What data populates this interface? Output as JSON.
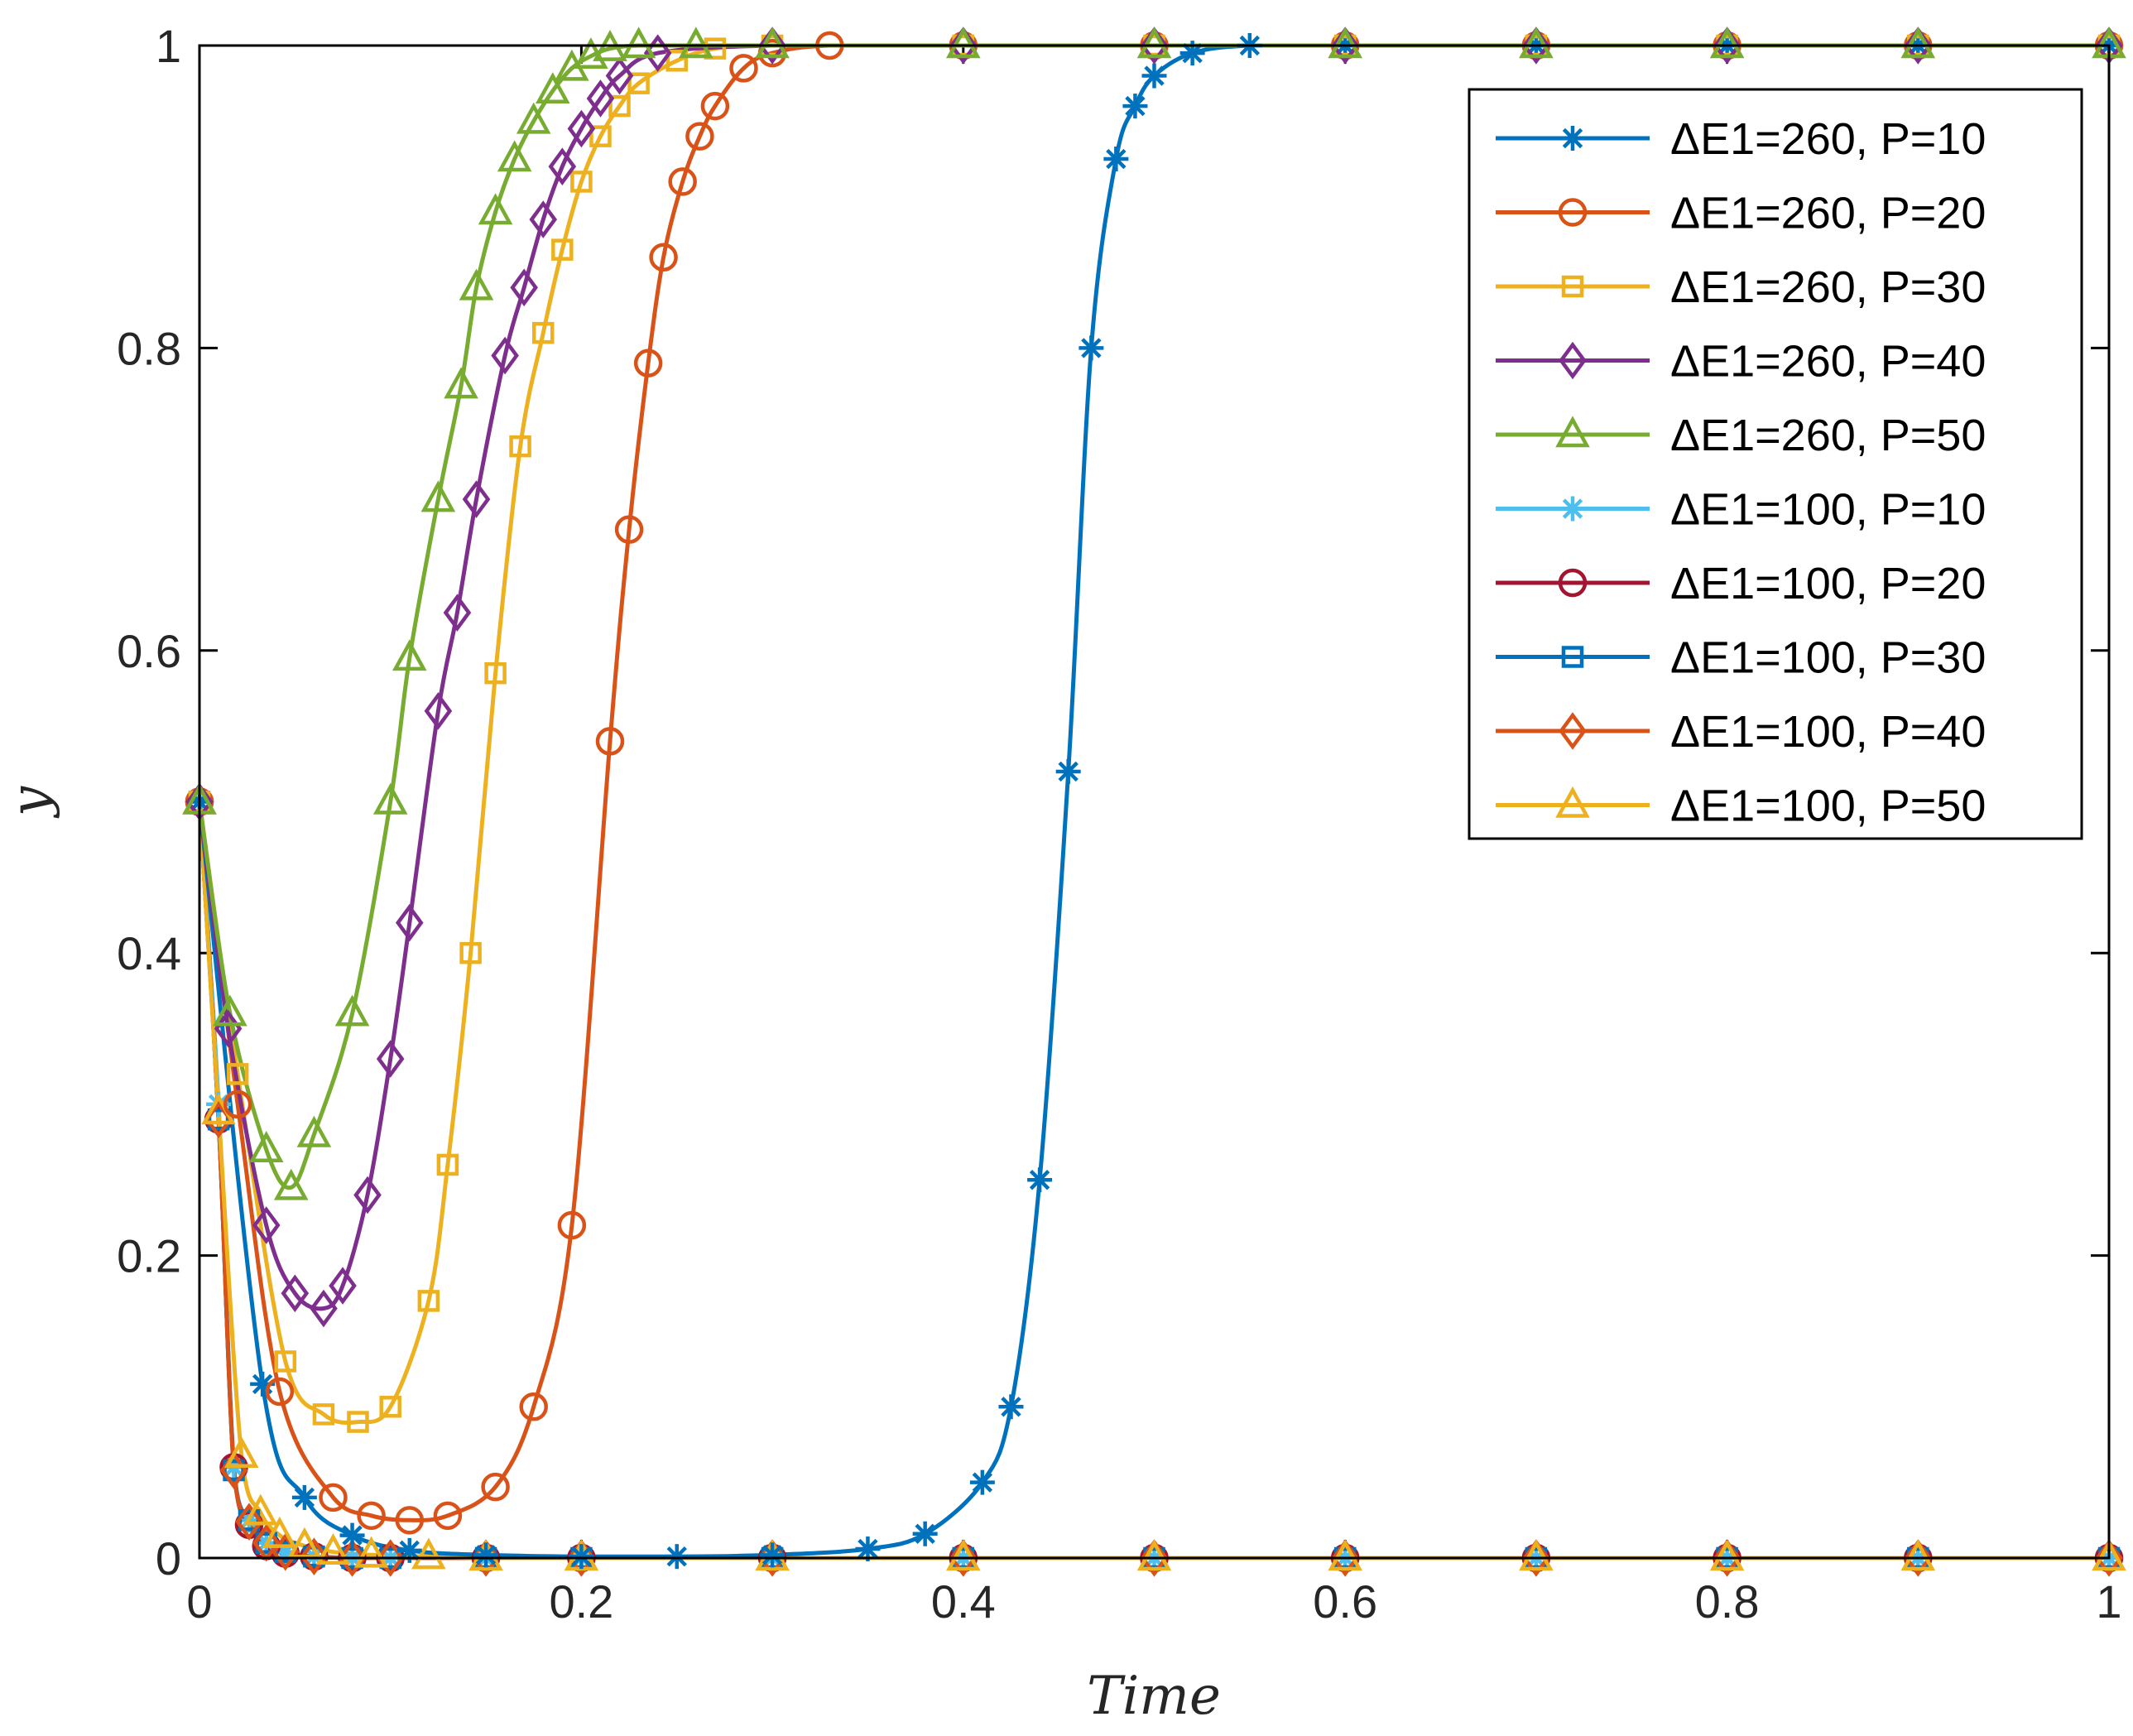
{
  "chart_data": {
    "type": "line",
    "title": "",
    "xlabel": "Time",
    "ylabel": "y",
    "xlim": [
      0,
      1
    ],
    "ylim": [
      0,
      1
    ],
    "xticks": [
      "0",
      "0.2",
      "0.4",
      "0.6",
      "0.8",
      "1"
    ],
    "yticks": [
      "0",
      "0.2",
      "0.4",
      "0.6",
      "0.8",
      "1"
    ],
    "grid": false,
    "legend_position": "top-right",
    "series": [
      {
        "name": "ΔE1=260, P=10",
        "color": "#0072BD",
        "marker": "asterisk",
        "x": [
          0,
          0.033,
          0.055,
          0.08,
          0.11,
          0.15,
          0.2,
          0.25,
          0.3,
          0.35,
          0.38,
          0.41,
          0.425,
          0.44,
          0.455,
          0.467,
          0.48,
          0.49,
          0.5,
          0.52,
          0.55,
          0.6,
          0.7,
          0.8,
          0.9,
          1.0
        ],
        "y": [
          0.5,
          0.115,
          0.04,
          0.015,
          0.005,
          0.002,
          0.001,
          0.001,
          0.002,
          0.006,
          0.016,
          0.05,
          0.1,
          0.25,
          0.52,
          0.8,
          0.925,
          0.96,
          0.98,
          0.995,
          1.0,
          1.0,
          1.0,
          1.0,
          1.0,
          1.0
        ]
      },
      {
        "name": "ΔE1=260, P=20",
        "color": "#D95319",
        "marker": "circle",
        "x": [
          0,
          0.02,
          0.042,
          0.07,
          0.09,
          0.11,
          0.13,
          0.155,
          0.175,
          0.195,
          0.215,
          0.225,
          0.235,
          0.243,
          0.253,
          0.262,
          0.27,
          0.285,
          0.3,
          0.33,
          0.4,
          0.5,
          0.6,
          0.7,
          0.8,
          0.9,
          1.0
        ],
        "y": [
          0.5,
          0.3,
          0.11,
          0.04,
          0.028,
          0.025,
          0.028,
          0.047,
          0.1,
          0.22,
          0.54,
          0.68,
          0.79,
          0.86,
          0.91,
          0.94,
          0.96,
          0.985,
          0.995,
          1.0,
          1.0,
          1.0,
          1.0,
          1.0,
          1.0,
          1.0,
          1.0
        ]
      },
      {
        "name": "ΔE1=260, P=30",
        "color": "#EDB120",
        "marker": "square",
        "x": [
          0,
          0.02,
          0.045,
          0.065,
          0.083,
          0.1,
          0.12,
          0.13,
          0.142,
          0.155,
          0.168,
          0.18,
          0.19,
          0.2,
          0.21,
          0.22,
          0.23,
          0.25,
          0.27,
          0.3,
          0.4,
          0.5,
          0.6,
          0.7,
          0.8,
          0.9,
          1.0
        ],
        "y": [
          0.5,
          0.32,
          0.13,
          0.095,
          0.09,
          0.1,
          0.17,
          0.26,
          0.4,
          0.585,
          0.735,
          0.81,
          0.865,
          0.91,
          0.94,
          0.96,
          0.975,
          0.99,
          0.998,
          1.0,
          1.0,
          1.0,
          1.0,
          1.0,
          1.0,
          1.0,
          1.0
        ]
      },
      {
        "name": "ΔE1=260, P=40",
        "color": "#7E2F8E",
        "marker": "diamond",
        "x": [
          0,
          0.015,
          0.035,
          0.05,
          0.065,
          0.075,
          0.088,
          0.1,
          0.11,
          0.125,
          0.135,
          0.145,
          0.16,
          0.17,
          0.18,
          0.19,
          0.2,
          0.21,
          0.22,
          0.24,
          0.3,
          0.4,
          0.5,
          0.6,
          0.7,
          0.8,
          0.9,
          1.0
        ],
        "y": [
          0.5,
          0.35,
          0.22,
          0.175,
          0.165,
          0.18,
          0.24,
          0.33,
          0.42,
          0.56,
          0.625,
          0.7,
          0.795,
          0.84,
          0.885,
          0.92,
          0.945,
          0.965,
          0.98,
          0.995,
          1.0,
          1.0,
          1.0,
          1.0,
          1.0,
          1.0,
          1.0,
          1.0
        ]
      },
      {
        "name": "ΔE1=260, P=50",
        "color": "#77AC30",
        "marker": "triangle",
        "x": [
          0,
          0.016,
          0.035,
          0.048,
          0.06,
          0.08,
          0.1,
          0.11,
          0.125,
          0.137,
          0.145,
          0.155,
          0.165,
          0.175,
          0.185,
          0.195,
          0.205,
          0.215,
          0.23,
          0.26,
          0.3,
          0.4,
          0.5,
          0.6,
          0.7,
          0.8,
          0.9,
          1.0
        ],
        "y": [
          0.5,
          0.36,
          0.27,
          0.245,
          0.28,
          0.36,
          0.5,
          0.595,
          0.7,
          0.775,
          0.84,
          0.89,
          0.925,
          0.95,
          0.97,
          0.985,
          0.993,
          0.998,
          1.0,
          1.0,
          1.0,
          1.0,
          1.0,
          1.0,
          1.0,
          1.0,
          1.0,
          1.0
        ]
      },
      {
        "name": "ΔE1=100, P=10",
        "color": "#4DBEEE",
        "marker": "asterisk",
        "x": [
          0,
          0.01,
          0.018,
          0.026,
          0.035,
          0.045,
          0.06,
          0.08,
          0.1,
          0.15,
          0.2,
          0.3,
          0.4,
          0.5,
          0.6,
          0.7,
          0.8,
          0.9,
          1.0
        ],
        "y": [
          0.5,
          0.3,
          0.06,
          0.025,
          0.01,
          0.004,
          0.001,
          0.0,
          0.0,
          0.0,
          0.0,
          0.0,
          0.0,
          0.0,
          0.0,
          0.0,
          0.0,
          0.0,
          0.0
        ]
      },
      {
        "name": "ΔE1=100, P=20",
        "color": "#A2142F",
        "marker": "circle",
        "x": [
          0,
          0.01,
          0.018,
          0.026,
          0.035,
          0.045,
          0.06,
          0.08,
          0.1,
          0.15,
          0.2,
          0.3,
          0.4,
          0.5,
          0.6,
          0.7,
          0.8,
          0.9,
          1.0
        ],
        "y": [
          0.5,
          0.29,
          0.06,
          0.022,
          0.008,
          0.003,
          0.001,
          0.0,
          0.0,
          0.0,
          0.0,
          0.0,
          0.0,
          0.0,
          0.0,
          0.0,
          0.0,
          0.0,
          0.0
        ]
      },
      {
        "name": "ΔE1=100, P=30",
        "color": "#0072BD",
        "marker": "square",
        "x": [
          0,
          0.01,
          0.018,
          0.026,
          0.035,
          0.045,
          0.06,
          0.08,
          0.1,
          0.15,
          0.2,
          0.3,
          0.4,
          0.5,
          0.6,
          0.7,
          0.8,
          0.9,
          1.0
        ],
        "y": [
          0.5,
          0.29,
          0.058,
          0.025,
          0.01,
          0.004,
          0.001,
          0.0,
          0.0,
          0.0,
          0.0,
          0.0,
          0.0,
          0.0,
          0.0,
          0.0,
          0.0,
          0.0,
          0.0
        ]
      },
      {
        "name": "ΔE1=100, P=40",
        "color": "#D95319",
        "marker": "diamond",
        "x": [
          0,
          0.01,
          0.018,
          0.026,
          0.035,
          0.045,
          0.06,
          0.08,
          0.1,
          0.15,
          0.2,
          0.3,
          0.4,
          0.5,
          0.6,
          0.7,
          0.8,
          0.9,
          1.0
        ],
        "y": [
          0.5,
          0.29,
          0.058,
          0.024,
          0.01,
          0.004,
          0.001,
          0.0,
          0.0,
          0.0,
          0.0,
          0.0,
          0.0,
          0.0,
          0.0,
          0.0,
          0.0,
          0.0,
          0.0
        ]
      },
      {
        "name": "ΔE1=100, P=50",
        "color": "#EDB120",
        "marker": "triangle",
        "x": [
          0,
          0.01,
          0.022,
          0.032,
          0.042,
          0.055,
          0.07,
          0.09,
          0.12,
          0.15,
          0.2,
          0.3,
          0.4,
          0.5,
          0.6,
          0.7,
          0.8,
          0.9,
          1.0
        ],
        "y": [
          0.5,
          0.295,
          0.068,
          0.03,
          0.015,
          0.008,
          0.004,
          0.002,
          0.001,
          0.0,
          0.0,
          0.0,
          0.0,
          0.0,
          0.0,
          0.0,
          0.0,
          0.0,
          0.0
        ]
      }
    ]
  }
}
